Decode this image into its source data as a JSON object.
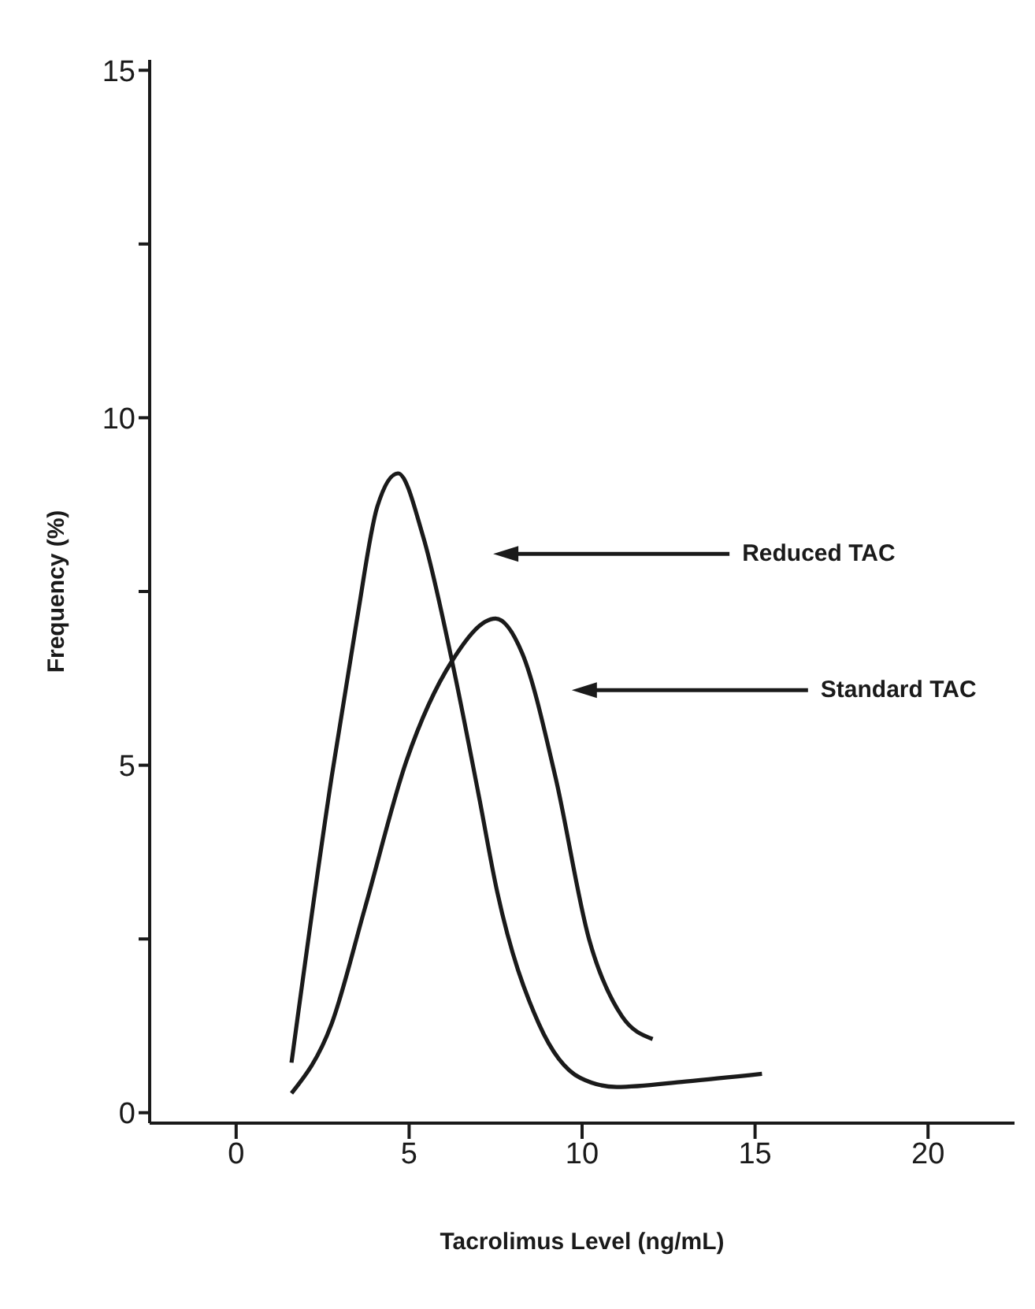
{
  "chart_data": {
    "type": "line",
    "xlabel": "Tacrolimus Level (ng/mL)",
    "ylabel": "Frequency (%)",
    "xlim": [
      -2.5,
      22.5
    ],
    "xticks": [
      0,
      5,
      10,
      15,
      20
    ],
    "ylim": [
      -0.15,
      15.15
    ],
    "yticks": [
      0,
      {
        "value": 2.5,
        "label": null
      },
      5,
      {
        "value": 7.5,
        "label": null
      },
      10,
      {
        "value": 12.5,
        "label": null
      },
      15
    ],
    "grid": false,
    "marker": "none",
    "line_style": "solid",
    "series": [
      {
        "color": "#1a1a1a",
        "x": [
          1.6,
          2.76,
          3.48,
          4.08,
          4.68,
          5.4,
          6.24,
          7.0,
          7.55,
          8.75,
          9.95,
          11.0,
          13.0,
          15.2
        ],
        "values": [
          0.72,
          4.83,
          7.06,
          8.72,
          9.2,
          8.3,
          6.5,
          4.6,
          3.17,
          1.28,
          0.5,
          0.37,
          0.45,
          0.56
        ]
      },
      {
        "color": "#1a1a1a",
        "x": [
          1.6,
          2.76,
          3.72,
          4.92,
          6.24,
          7.5,
          8.27,
          9.23,
          10.2,
          11.15,
          12.04
        ],
        "values": [
          0.28,
          1.28,
          2.94,
          5.06,
          6.5,
          7.11,
          6.61,
          4.83,
          2.5,
          1.39,
          1.06
        ]
      }
    ],
    "annotations": [
      "Reduced TAC",
      "Standard TAC"
    ]
  }
}
